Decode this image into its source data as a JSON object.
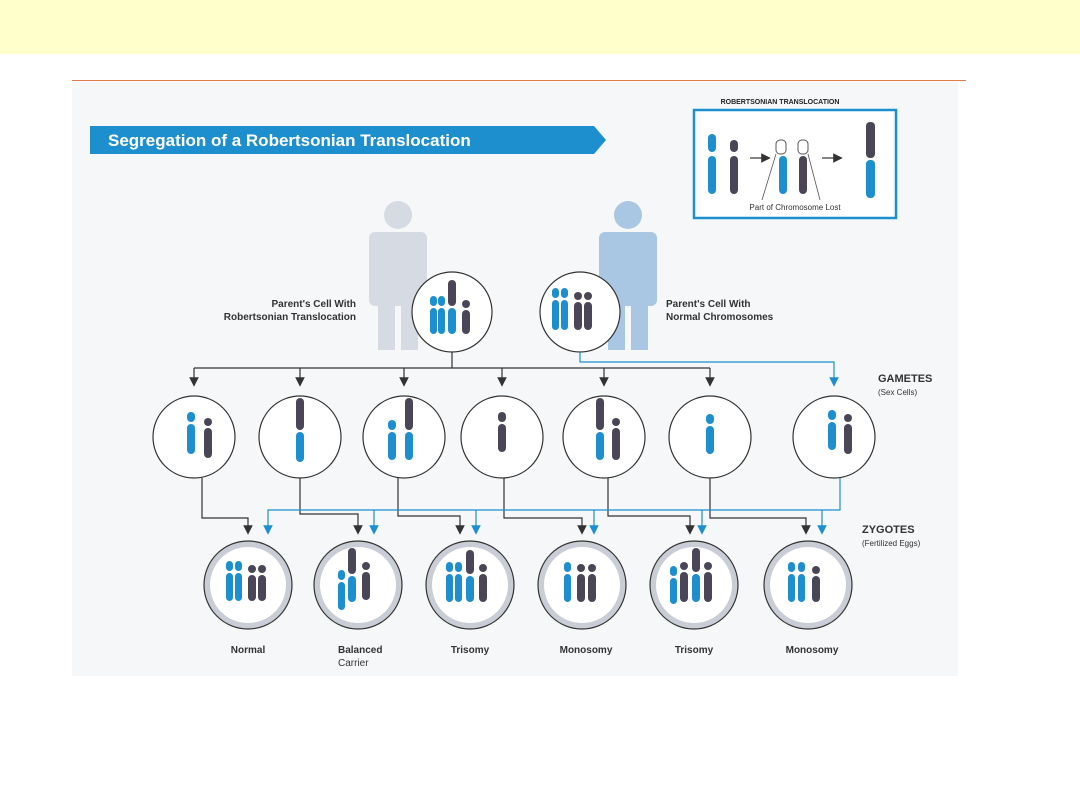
{
  "slide": {
    "title": "Segregation of a Robertsonian Translocation"
  },
  "inset": {
    "heading": "ROBERTSONIAN TRANSLOCATION",
    "caption": "Part of Chromosome Lost"
  },
  "parents": [
    {
      "label_line1": "Parent's Cell With",
      "label_line2": "Robertsonian Translocation"
    },
    {
      "label_line1": "Parent's Cell With",
      "label_line2": "Normal Chromosomes"
    }
  ],
  "rows": {
    "gametes": {
      "label": "GAMETES",
      "sub": "(Sex Cells)"
    },
    "zygotes": {
      "label": "ZYGOTES",
      "sub": "(Fertilized Eggs)"
    }
  },
  "outcomes": [
    {
      "line1": "Normal",
      "line2": ""
    },
    {
      "line1": "Balanced",
      "line2": "Carrier"
    },
    {
      "line1": "Trisomy",
      "line2": ""
    },
    {
      "line1": "Monosomy",
      "line2": ""
    },
    {
      "line1": "Trisomy",
      "line2": ""
    },
    {
      "line1": "Monosomy",
      "line2": ""
    }
  ],
  "colors": {
    "blue": "#1d8fcf",
    "dark": "#4a4657",
    "title_bar": "#1d8fcf",
    "zygote_fill": "#c9cdd6",
    "parent_left": "#d6dbe3",
    "parent_right": "#a9c7e3"
  }
}
